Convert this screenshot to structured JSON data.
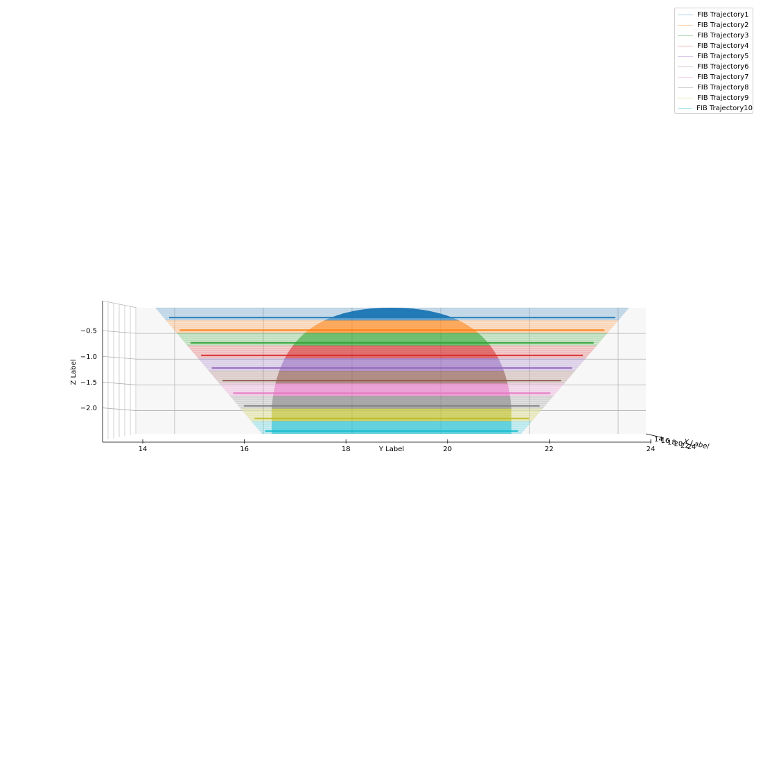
{
  "chart_data": {
    "type": "surface3d",
    "view": "elevation 0, side view along x axis",
    "title": "",
    "xlabel": "X Label",
    "ylabel": "Y Label",
    "zlabel": "Z Label",
    "xlim": [
      13.2,
      24.9
    ],
    "ylim": [
      13.2,
      24.9
    ],
    "zlim": [
      -2.45,
      0.05
    ],
    "y_ticks": [
      14,
      16,
      18,
      20,
      22,
      24
    ],
    "y_tick_labels": [
      "14",
      "16",
      "18",
      "20",
      "22",
      "24"
    ],
    "z_ticks": [
      -0.5,
      -1.0,
      -1.5,
      -2.0
    ],
    "z_tick_labels": [
      "−0.5",
      "−1.0",
      "−1.5",
      "−2.0"
    ],
    "x_ticks": [
      14,
      16,
      18,
      20,
      22,
      24
    ],
    "x_tick_labels": [
      "14",
      "16",
      "18",
      "20",
      "22",
      "24"
    ],
    "grid": true,
    "legend_position": "top-right",
    "sphere": {
      "center_y": 19.0,
      "radius": 4.7,
      "top_z": 0.0,
      "color": "#1f77b4"
    },
    "series": [
      {
        "name": "FIB Trajectory1",
        "color": "#1f77b4",
        "z": -0.0,
        "y_start": 13.6,
        "y_end": 24.3
      },
      {
        "name": "FIB Trajectory2",
        "color": "#ff7f0e",
        "z": -0.27,
        "y_start": 13.9,
        "y_end": 24.0
      },
      {
        "name": "FIB Trajectory3",
        "color": "#2ca02c",
        "z": -0.52,
        "y_start": 14.15,
        "y_end": 23.75
      },
      {
        "name": "FIB Trajectory4",
        "color": "#d62728",
        "z": -0.77,
        "y_start": 14.4,
        "y_end": 23.5
      },
      {
        "name": "FIB Trajectory5",
        "color": "#9467bd",
        "z": -1.02,
        "y_start": 14.7,
        "y_end": 23.2
      },
      {
        "name": "FIB Trajectory6",
        "color": "#8c564b",
        "z": -1.27,
        "y_start": 14.95,
        "y_end": 22.95
      },
      {
        "name": "FIB Trajectory7",
        "color": "#e377c2",
        "z": -1.52,
        "y_start": 15.2,
        "y_end": 22.7
      },
      {
        "name": "FIB Trajectory8",
        "color": "#7f7f7f",
        "z": -1.77,
        "y_start": 15.5,
        "y_end": 22.4
      },
      {
        "name": "FIB Trajectory9",
        "color": "#bcbd22",
        "z": -2.02,
        "y_start": 15.75,
        "y_end": 22.15
      },
      {
        "name": "FIB Trajectory10",
        "color": "#17becf",
        "z": -2.27,
        "y_start": 16.0,
        "y_end": 21.9
      }
    ]
  }
}
